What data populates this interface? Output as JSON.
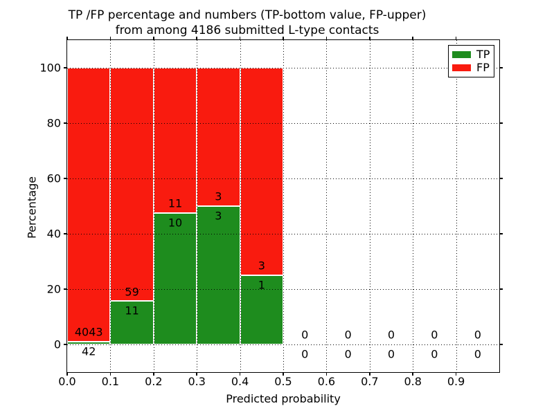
{
  "chart_data": {
    "type": "bar",
    "stacking": "percentage-stacked-histogram",
    "title_line1": "TP /FP percentage and numbers (TP-bottom value, FP-upper)",
    "title_line2": "from among 4186 submitted L-type contacts",
    "xlabel": "Predicted probability",
    "ylabel": "Percentage",
    "total_submitted_contacts": 4186,
    "xlim": [
      0.0,
      1.0
    ],
    "ylim": [
      -10,
      110
    ],
    "grid": true,
    "x_ticks": [
      {
        "value": 0.0,
        "label": "0.0"
      },
      {
        "value": 0.1,
        "label": "0.1"
      },
      {
        "value": 0.2,
        "label": "0.2"
      },
      {
        "value": 0.3,
        "label": "0.3"
      },
      {
        "value": 0.4,
        "label": "0.4"
      },
      {
        "value": 0.5,
        "label": "0.5"
      },
      {
        "value": 0.6,
        "label": "0.6"
      },
      {
        "value": 0.7,
        "label": "0.7"
      },
      {
        "value": 0.8,
        "label": "0.8"
      },
      {
        "value": 0.9,
        "label": "0.9"
      }
    ],
    "y_ticks": [
      {
        "value": 0,
        "label": "0"
      },
      {
        "value": 20,
        "label": "20"
      },
      {
        "value": 40,
        "label": "40"
      },
      {
        "value": 60,
        "label": "60"
      },
      {
        "value": 80,
        "label": "80"
      },
      {
        "value": 100,
        "label": "100"
      }
    ],
    "legend": [
      {
        "label": "TP",
        "color": "#1e8c1e"
      },
      {
        "label": "FP",
        "color": "#f91b0f"
      }
    ],
    "colors": {
      "tp": "#1e8c1e",
      "fp": "#f91b0f",
      "bar_edge": "#ffffff",
      "grid": "#000000",
      "text": "#000000"
    },
    "bins": [
      {
        "x_start": 0.0,
        "x_end": 0.1,
        "tp_count": 42,
        "fp_count": 4043,
        "tp_pct": 1.03,
        "fp_pct": 98.97,
        "has_bar": true
      },
      {
        "x_start": 0.1,
        "x_end": 0.2,
        "tp_count": 11,
        "fp_count": 59,
        "tp_pct": 15.71,
        "fp_pct": 84.29,
        "has_bar": true
      },
      {
        "x_start": 0.2,
        "x_end": 0.3,
        "tp_count": 10,
        "fp_count": 11,
        "tp_pct": 47.62,
        "fp_pct": 52.38,
        "has_bar": true
      },
      {
        "x_start": 0.3,
        "x_end": 0.4,
        "tp_count": 3,
        "fp_count": 3,
        "tp_pct": 50.0,
        "fp_pct": 50.0,
        "has_bar": true
      },
      {
        "x_start": 0.4,
        "x_end": 0.5,
        "tp_count": 1,
        "fp_count": 3,
        "tp_pct": 25.0,
        "fp_pct": 75.0,
        "has_bar": true
      },
      {
        "x_start": 0.5,
        "x_end": 0.6,
        "tp_count": 0,
        "fp_count": 0,
        "tp_pct": 0,
        "fp_pct": 0,
        "has_bar": false
      },
      {
        "x_start": 0.6,
        "x_end": 0.7,
        "tp_count": 0,
        "fp_count": 0,
        "tp_pct": 0,
        "fp_pct": 0,
        "has_bar": false
      },
      {
        "x_start": 0.7,
        "x_end": 0.8,
        "tp_count": 0,
        "fp_count": 0,
        "tp_pct": 0,
        "fp_pct": 0,
        "has_bar": false
      },
      {
        "x_start": 0.8,
        "x_end": 0.9,
        "tp_count": 0,
        "fp_count": 0,
        "tp_pct": 0,
        "fp_pct": 0,
        "has_bar": false
      },
      {
        "x_start": 0.9,
        "x_end": 1.0,
        "tp_count": 0,
        "fp_count": 0,
        "tp_pct": 0,
        "fp_pct": 0,
        "has_bar": false
      }
    ]
  }
}
